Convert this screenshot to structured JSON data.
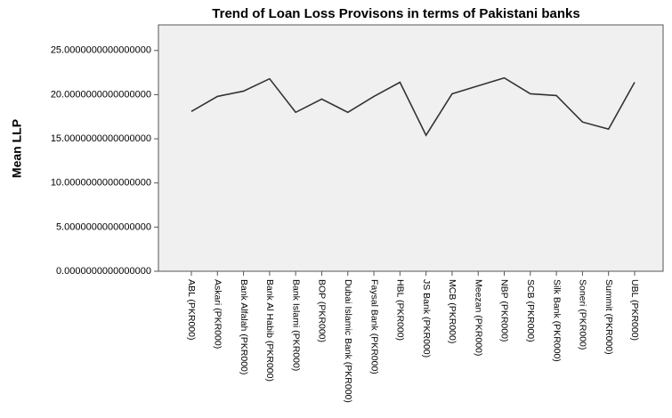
{
  "chart_data": {
    "type": "line",
    "title": "Trend of Loan Loss Provisons in terms of Pakistani banks",
    "y_label": "Mean LLP",
    "categories": [
      "ABL (PKR000)",
      "Askari (PKR000)",
      "Bank Alfalah (PKR000)",
      "Bank Al Habib (PKR000)",
      "Bank Islami (PKR000)",
      "BOP (PKR000)",
      "Dubai Islamic Bank (PKR000)",
      "Faysal Bank (PKR000)",
      "HBL (PKR000)",
      "JS Bank (PKR000)",
      "MCB (PKR000)",
      "Meezan (PKR000)",
      "NBP (PKR000)",
      "SCB (PKR000)",
      "Silk Bank (PKR000)",
      "Soneri (PKR000)",
      "Summit (PKR000)",
      "UBL (PKR000)"
    ],
    "values": [
      18.1,
      19.8,
      20.4,
      21.8,
      18.0,
      19.5,
      18.0,
      19.8,
      21.4,
      15.4,
      20.1,
      21.0,
      21.9,
      20.1,
      19.9,
      16.9,
      16.1,
      21.4
    ],
    "color": "#333333",
    "ylim": [
      0,
      27.9
    ],
    "yticks": [
      {
        "value": 0,
        "label": "0.0000000000000000"
      },
      {
        "value": 5,
        "label": "5.0000000000000000"
      },
      {
        "value": 10,
        "label": "10.0000000000000000"
      },
      {
        "value": 15,
        "label": "15.0000000000000000"
      },
      {
        "value": 20,
        "label": "20.0000000000000000"
      },
      {
        "value": 25,
        "label": "25.0000000000000000"
      }
    ],
    "grid": false
  }
}
